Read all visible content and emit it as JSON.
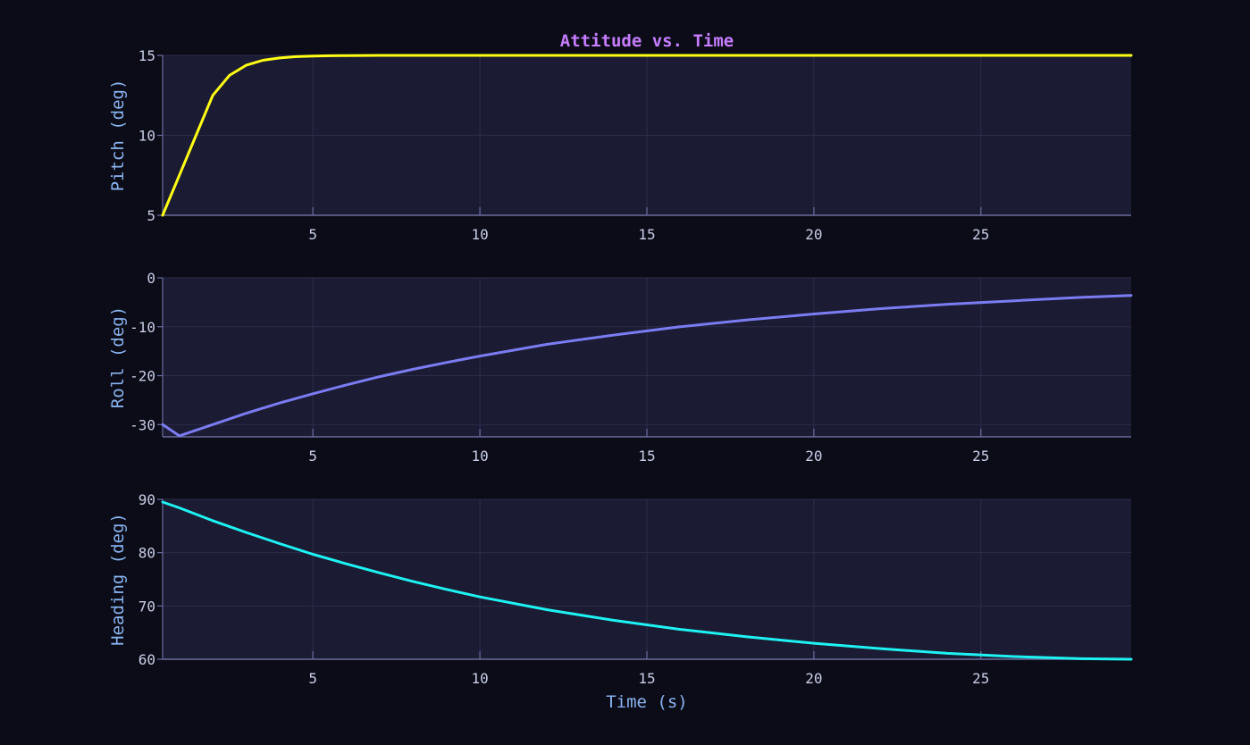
{
  "chart_data": {
    "type": "line",
    "title": "Attitude vs. Time",
    "xlabel": "Time (s)",
    "xlim": [
      0.5,
      29.5
    ],
    "x_ticks": [
      5,
      10,
      15,
      20,
      25
    ],
    "grid": true,
    "theme": {
      "background": "#0b0c17",
      "plot_background": "#1b1b33",
      "grid_color": "#2c2d4a",
      "axis_color": "#6b6d9e",
      "tick_label_color": "#c9cde6",
      "axis_label_color": "#8ab4f0",
      "title_color": "#c77dff"
    },
    "panels": [
      {
        "ylabel": "Pitch (deg)",
        "ylim": [
          5,
          15
        ],
        "y_ticks": [
          5,
          10,
          15
        ],
        "color": "#ffff14",
        "x": [
          0.5,
          1,
          1.5,
          2,
          2.5,
          3,
          3.5,
          4,
          4.5,
          5,
          5.5,
          6,
          7,
          8,
          10,
          12,
          15,
          20,
          25,
          29.5
        ],
        "y": [
          5.0,
          7.5,
          10.0,
          12.5,
          13.75,
          14.38,
          14.69,
          14.84,
          14.92,
          14.96,
          14.98,
          14.99,
          15.0,
          15.0,
          15.0,
          15.0,
          15.0,
          15.0,
          15.0,
          15.0
        ]
      },
      {
        "ylabel": "Roll (deg)",
        "ylim": [
          -32.5,
          0
        ],
        "y_ticks": [
          0,
          -10,
          -20,
          -30
        ],
        "color": "#7b7cf2",
        "x": [
          0.5,
          1,
          2,
          3,
          4,
          5,
          6,
          7,
          8,
          9,
          10,
          12,
          14,
          16,
          18,
          20,
          22,
          24,
          26,
          28,
          29.5
        ],
        "y": [
          -30.0,
          -32.3,
          -30.0,
          -27.7,
          -25.6,
          -23.7,
          -21.9,
          -20.2,
          -18.7,
          -17.3,
          -16.0,
          -13.6,
          -11.7,
          -10.0,
          -8.6,
          -7.4,
          -6.3,
          -5.4,
          -4.7,
          -4.0,
          -3.6
        ]
      },
      {
        "ylabel": "Heading (deg)",
        "ylim": [
          60,
          90
        ],
        "y_ticks": [
          60,
          70,
          80,
          90
        ],
        "color": "#1ef2f2",
        "x": [
          0.5,
          1,
          2,
          3,
          4,
          5,
          6,
          7,
          8,
          9,
          10,
          12,
          14,
          16,
          18,
          20,
          22,
          24,
          26,
          28,
          29.5
        ],
        "y": [
          89.5,
          88.4,
          86.0,
          83.8,
          81.7,
          79.7,
          77.9,
          76.2,
          74.6,
          73.1,
          71.7,
          69.3,
          67.3,
          65.6,
          64.2,
          63.0,
          62.0,
          61.1,
          60.5,
          60.1,
          60.0
        ]
      }
    ]
  }
}
